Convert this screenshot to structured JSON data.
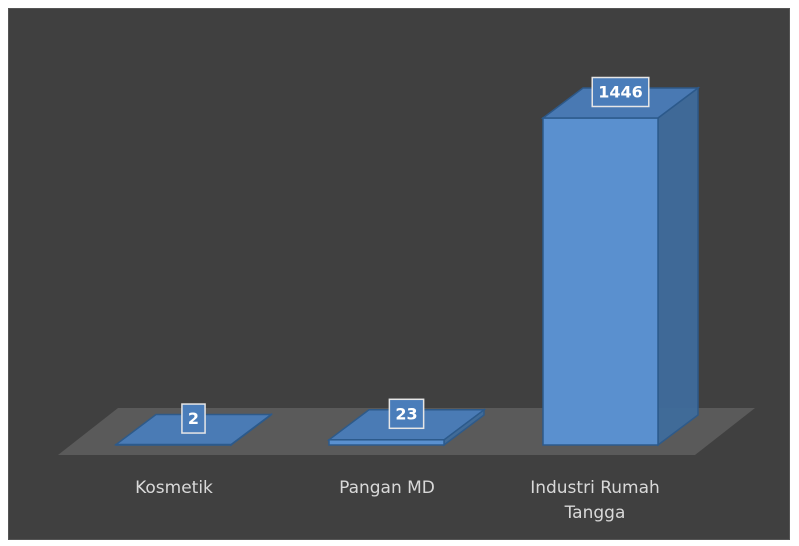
{
  "chart_data": {
    "type": "bar",
    "categories": [
      "Kosmetik",
      "Pangan MD",
      "Industri Rumah Tangga"
    ],
    "values": [
      2,
      23,
      1446
    ],
    "color": "#5a90cf"
  }
}
